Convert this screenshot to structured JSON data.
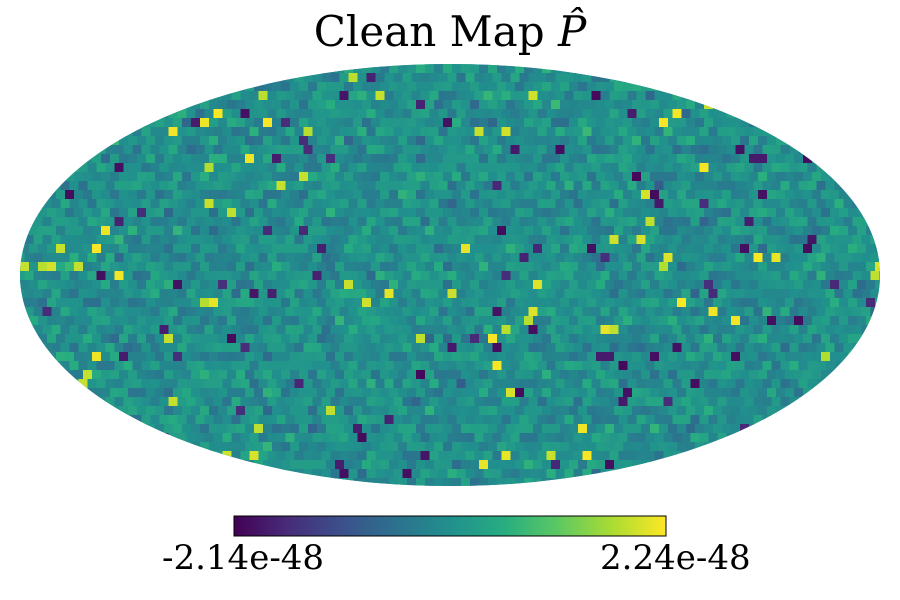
{
  "title_text": "Clean Map ",
  "title_symbol": "P̂",
  "colormap": "viridis",
  "colormap_stops": [
    "#440154",
    "#472c7a",
    "#3b518b",
    "#2c718e",
    "#21908d",
    "#27ad81",
    "#5cc863",
    "#aadc32",
    "#fde725"
  ],
  "chart_data": {
    "type": "heatmap",
    "projection": "mollweide",
    "title": "Clean Map P̂",
    "colorbar": {
      "min_label": "-2.14e-48",
      "max_label": "2.24e-48",
      "min": -2.14e-48,
      "max": 2.24e-48,
      "orientation": "horizontal",
      "placement": "bottom"
    },
    "grid": false,
    "field": "random pixelized sky map with noise-like fluctuations concentrated near the mean"
  }
}
